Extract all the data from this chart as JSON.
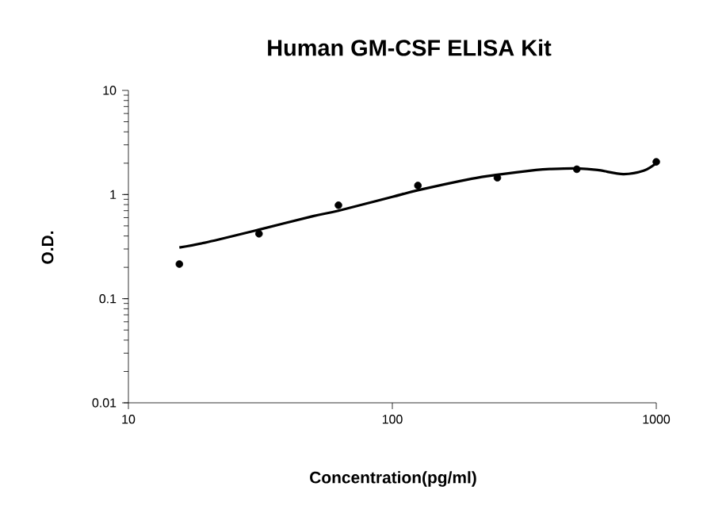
{
  "chart_data": {
    "type": "scatter",
    "title": "Human GM-CSF ELISA Kit",
    "xlabel": "Concentration(pg/ml)",
    "ylabel": "O.D.",
    "log": "xy",
    "xlim": [
      10,
      1000
    ],
    "ylim": [
      0.01,
      10
    ],
    "xticks": [
      10,
      100,
      1000
    ],
    "yticks": [
      0.01,
      0.1,
      1,
      10
    ],
    "grid": false,
    "series": [
      {
        "marker": "circle",
        "color": "#000000",
        "x": [
          15.6,
          31.25,
          62.5,
          125,
          250,
          500,
          1000
        ],
        "values": [
          0.215,
          0.42,
          0.79,
          1.22,
          1.45,
          1.75,
          2.06
        ]
      },
      {
        "type": "line",
        "marker": "none",
        "line_style": "solid",
        "color": "#000000",
        "x": [
          15.6,
          20,
          31.25,
          50,
          62.5,
          100,
          125,
          200,
          250,
          350,
          400,
          500,
          600,
          750,
          900,
          1000
        ],
        "values": [
          0.31,
          0.35,
          0.46,
          0.62,
          0.7,
          0.95,
          1.1,
          1.42,
          1.55,
          1.72,
          1.76,
          1.78,
          1.72,
          1.57,
          1.7,
          2.0
        ]
      }
    ]
  }
}
